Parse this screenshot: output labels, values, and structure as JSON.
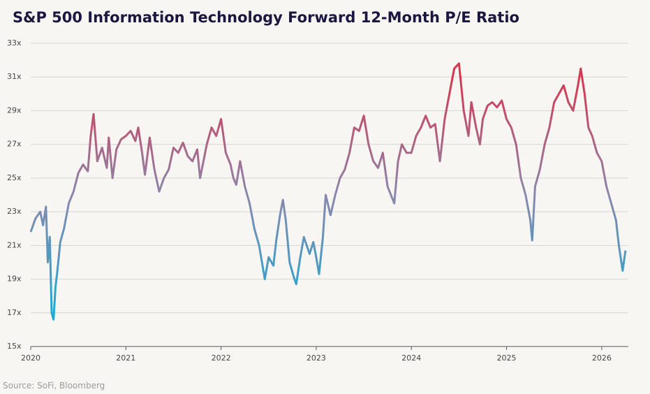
{
  "chart_data": {
    "type": "line",
    "title": "S&P 500 Information Technology Forward 12-Month P/E Ratio",
    "source": "Source: SoFi, Bloomberg",
    "x": [
      2020.0,
      2020.05,
      2020.1,
      2020.13,
      2020.16,
      2020.18,
      2020.2,
      2020.22,
      2020.24,
      2020.26,
      2020.28,
      2020.31,
      2020.35,
      2020.4,
      2020.45,
      2020.5,
      2020.55,
      2020.6,
      2020.63,
      2020.66,
      2020.7,
      2020.75,
      2020.8,
      2020.82,
      2020.86,
      2020.9,
      2020.95,
      2021.0,
      2021.05,
      2021.1,
      2021.13,
      2021.17,
      2021.2,
      2021.25,
      2021.3,
      2021.35,
      2021.4,
      2021.45,
      2021.5,
      2021.55,
      2021.6,
      2021.65,
      2021.7,
      2021.75,
      2021.78,
      2021.85,
      2021.9,
      2021.95,
      2022.0,
      2022.05,
      2022.1,
      2022.13,
      2022.16,
      2022.2,
      2022.25,
      2022.3,
      2022.35,
      2022.4,
      2022.43,
      2022.46,
      2022.5,
      2022.55,
      2022.58,
      2022.62,
      2022.65,
      2022.68,
      2022.72,
      2022.76,
      2022.79,
      2022.83,
      2022.87,
      2022.9,
      2022.93,
      2022.97,
      2023.0,
      2023.03,
      2023.07,
      2023.1,
      2023.15,
      2023.2,
      2023.25,
      2023.3,
      2023.35,
      2023.4,
      2023.45,
      2023.5,
      2023.55,
      2023.6,
      2023.65,
      2023.7,
      2023.75,
      2023.82,
      2023.86,
      2023.9,
      2023.95,
      2024.0,
      2024.05,
      2024.1,
      2024.15,
      2024.2,
      2024.25,
      2024.3,
      2024.35,
      2024.4,
      2024.45,
      2024.5,
      2024.55,
      2024.6,
      2024.63,
      2024.68,
      2024.72,
      2024.75,
      2024.8,
      2024.85,
      2024.9,
      2024.95,
      2025.0,
      2025.05,
      2025.1,
      2025.15,
      2025.2,
      2025.25,
      2025.27,
      2025.3,
      2025.35,
      2025.4,
      2025.45,
      2025.5,
      2025.55,
      2025.6,
      2025.65,
      2025.7,
      2025.75,
      2025.78,
      2025.82,
      2025.86,
      2025.9,
      2025.95,
      2026.0,
      2026.05,
      2026.1,
      2026.15,
      2026.18,
      2026.22,
      2026.25
    ],
    "values": [
      21.8,
      22.6,
      23.0,
      22.2,
      23.3,
      20.0,
      21.5,
      17.0,
      16.6,
      18.5,
      19.5,
      21.2,
      22.0,
      23.5,
      24.2,
      25.3,
      25.8,
      25.4,
      27.5,
      28.8,
      26.0,
      26.8,
      25.6,
      27.4,
      25.0,
      26.7,
      27.3,
      27.5,
      27.8,
      27.2,
      28.0,
      26.5,
      25.2,
      27.4,
      25.5,
      24.2,
      25.0,
      25.5,
      26.8,
      26.5,
      27.1,
      26.3,
      26.0,
      26.7,
      25.0,
      27.0,
      28.0,
      27.5,
      28.5,
      26.5,
      25.8,
      25.0,
      24.6,
      26.0,
      24.5,
      23.5,
      22.0,
      21.0,
      20.0,
      19.0,
      20.3,
      19.8,
      21.3,
      22.8,
      23.7,
      22.5,
      20.0,
      19.2,
      18.7,
      20.2,
      21.5,
      21.0,
      20.5,
      21.2,
      20.3,
      19.3,
      21.5,
      24.0,
      22.8,
      24.0,
      25.0,
      25.5,
      26.5,
      28.0,
      27.8,
      28.7,
      27.0,
      26.0,
      25.6,
      26.5,
      24.5,
      23.5,
      26.0,
      27.0,
      26.5,
      26.5,
      27.5,
      28.0,
      28.7,
      28.0,
      28.2,
      26.0,
      28.5,
      30.0,
      31.5,
      31.8,
      29.0,
      27.5,
      29.5,
      28.0,
      27.0,
      28.5,
      29.3,
      29.5,
      29.2,
      29.6,
      28.5,
      28.0,
      27.0,
      25.0,
      24.0,
      22.5,
      21.3,
      24.5,
      25.5,
      27.0,
      28.0,
      29.5,
      30.0,
      30.5,
      29.5,
      29.0,
      30.5,
      31.5,
      30.0,
      28.0,
      27.5,
      26.5,
      26.0,
      24.5,
      23.5,
      22.5,
      21.0,
      19.5,
      20.7
    ],
    "gradient_colors": [
      "#1ea9d1",
      "#8a88ad",
      "#d8354f"
    ],
    "xlim": [
      2020,
      2026.28
    ],
    "xticks": [
      2020,
      2021,
      2022,
      2023,
      2024,
      2025,
      2026
    ],
    "ylim": [
      15,
      33
    ],
    "yticks": [
      {
        "value": 15,
        "label": "15x"
      },
      {
        "value": 17,
        "label": "17x"
      },
      {
        "value": 19,
        "label": "19x"
      },
      {
        "value": 21,
        "label": "21x"
      },
      {
        "value": 23,
        "label": "23x"
      },
      {
        "value": 25,
        "label": "25x"
      },
      {
        "value": 27,
        "label": "27x"
      },
      {
        "value": 29,
        "label": "29x"
      },
      {
        "value": 31,
        "label": "31x"
      },
      {
        "value": 33,
        "label": "33x"
      }
    ],
    "grid": true
  }
}
